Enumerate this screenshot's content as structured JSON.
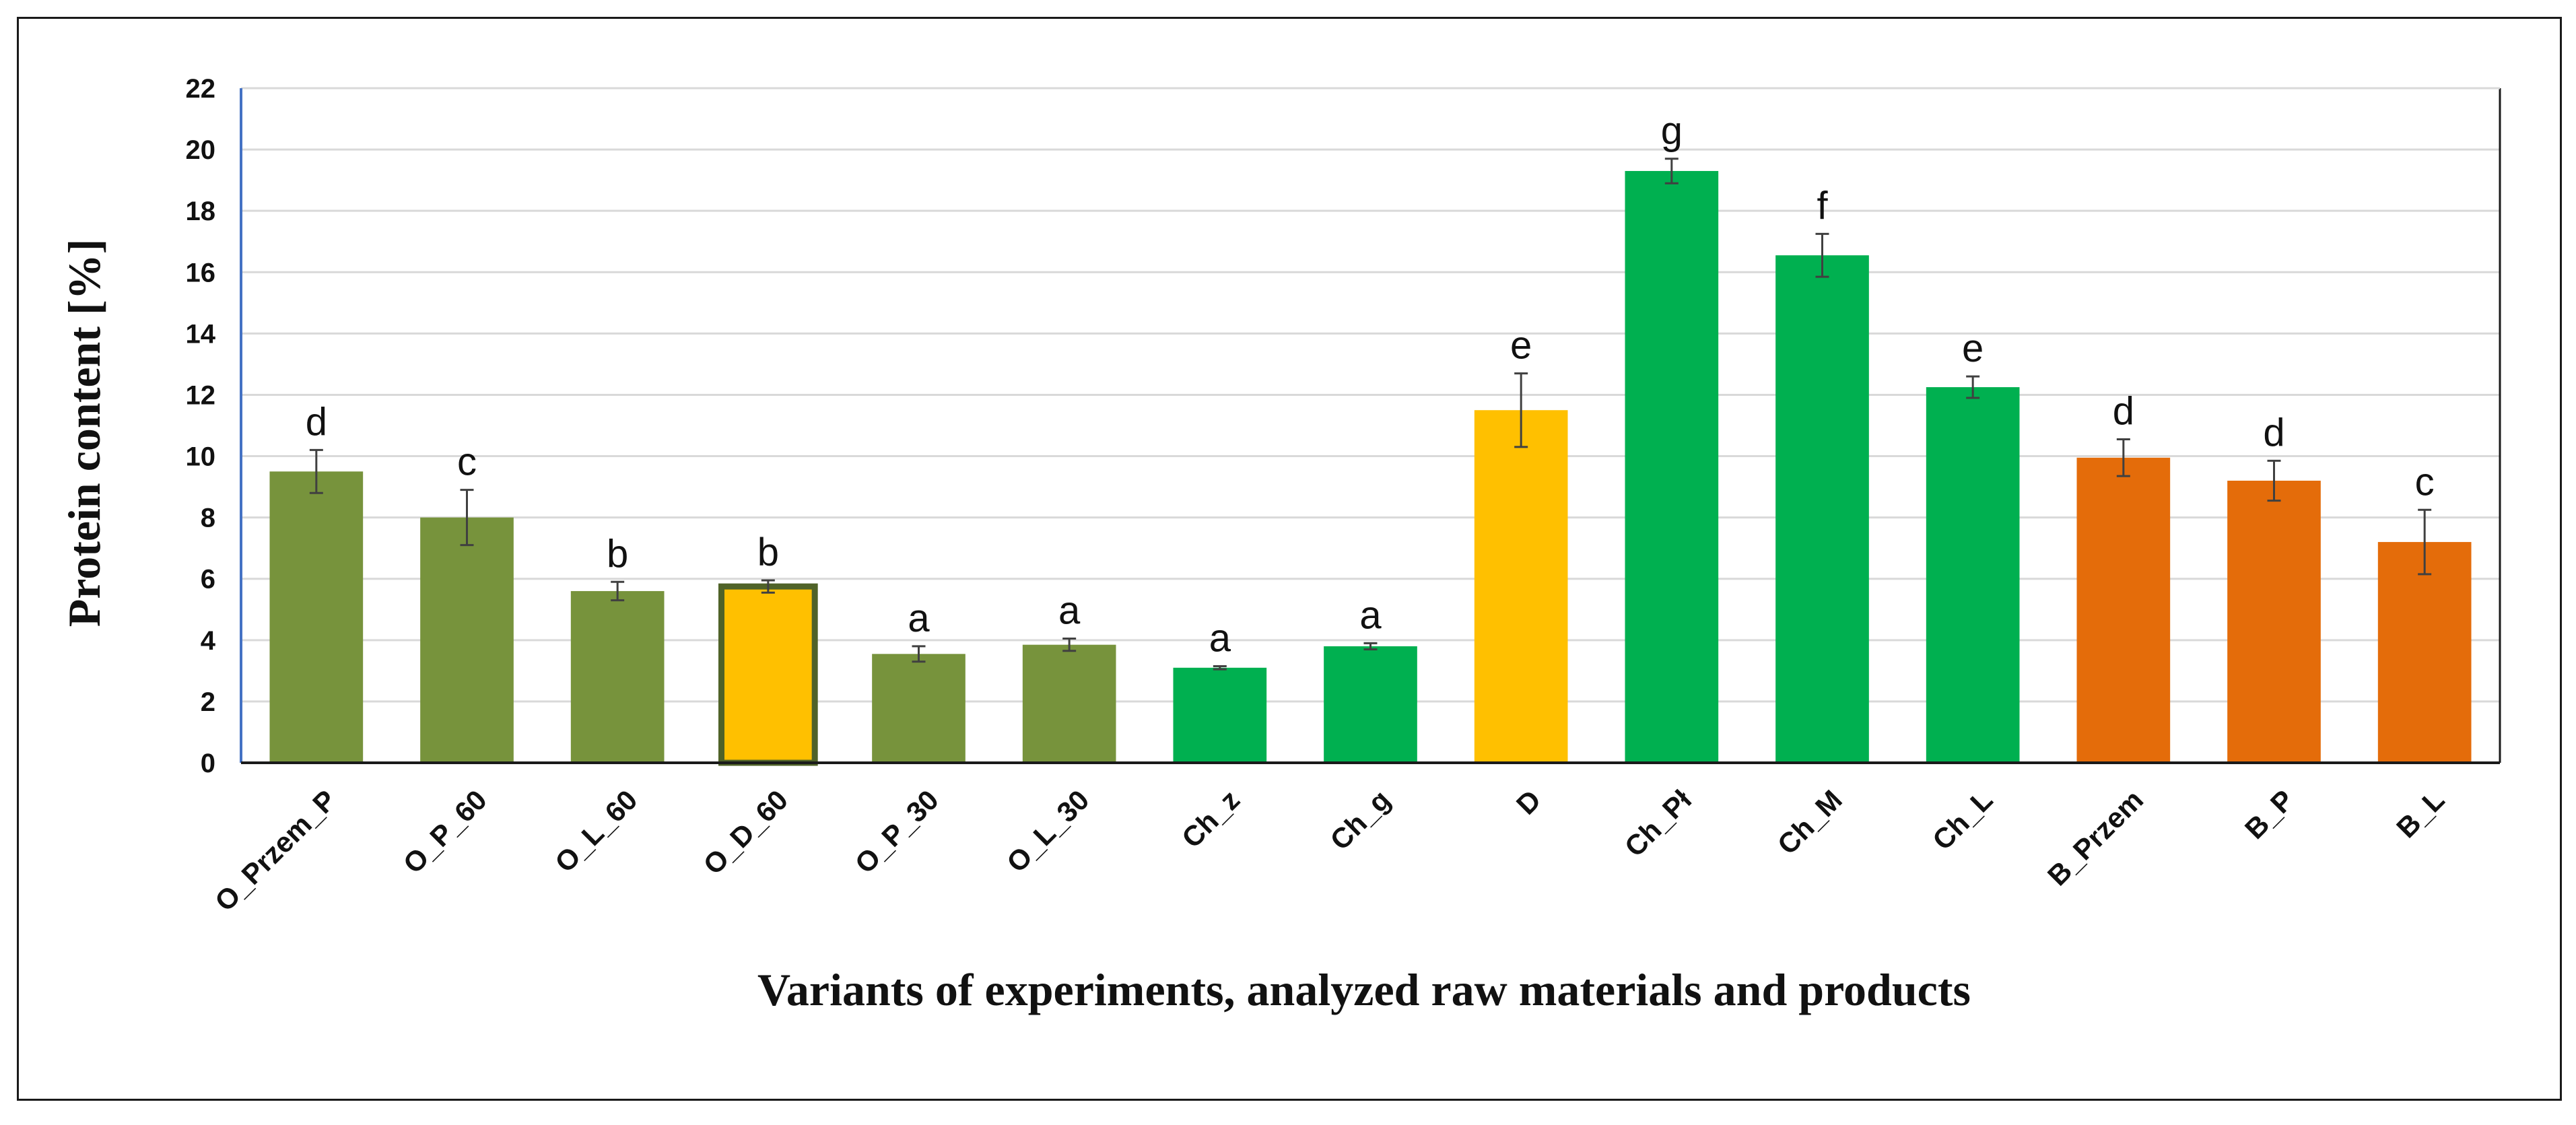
{
  "chart_data": {
    "type": "bar",
    "title": "",
    "xlabel": "Variants of experiments, analyzed raw materials and products",
    "ylabel": "Protein content [%]",
    "ylim": [
      0,
      22
    ],
    "yticks": [
      "0",
      "2",
      "4",
      "6",
      "8",
      "10",
      "12",
      "14",
      "16",
      "18",
      "20",
      "22"
    ],
    "grid": true,
    "categories": [
      "O_Przem_P",
      "O_P_60",
      "O_L_60",
      "O_D_60",
      "O_P_30",
      "O_L_30",
      "Ch_z",
      "Ch_g",
      "D",
      "Ch_Pł",
      "Ch_M",
      "Ch_L",
      "B_Przem",
      "B_P",
      "B_L"
    ],
    "values": [
      9.5,
      8.0,
      5.6,
      5.75,
      3.55,
      3.85,
      3.1,
      3.8,
      11.5,
      19.3,
      16.55,
      12.25,
      9.95,
      9.2,
      7.2
    ],
    "errors": [
      0.7,
      0.9,
      0.3,
      0.2,
      0.25,
      0.2,
      0.05,
      0.1,
      1.2,
      0.4,
      0.7,
      0.35,
      0.6,
      0.65,
      1.05
    ],
    "significance_letters": [
      "d",
      "c",
      "b",
      "b",
      "a",
      "a",
      "a",
      "a",
      "e",
      "g",
      "f",
      "e",
      "d",
      "d",
      "c"
    ],
    "bar_colors": [
      "#77933c",
      "#77933c",
      "#77933c",
      "#ffc000",
      "#77933c",
      "#77933c",
      "#00b050",
      "#00b050",
      "#ffc000",
      "#00b050",
      "#00b050",
      "#00b050",
      "#e46c0a",
      "#e46c0a",
      "#e46c0a"
    ],
    "bar_outlines": [
      "",
      "",
      "",
      "#4f6228",
      "",
      "",
      "",
      "",
      "",
      "",
      "",
      "",
      "",
      "",
      ""
    ]
  }
}
